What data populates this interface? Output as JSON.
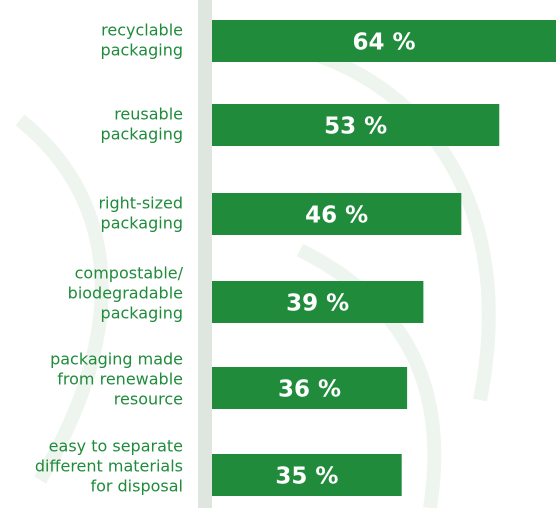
{
  "chart_data": {
    "type": "bar",
    "orientation": "horizontal",
    "categories": [
      [
        "recyclable",
        "packaging"
      ],
      [
        "reusable",
        "packaging"
      ],
      [
        "right-sized",
        "packaging"
      ],
      [
        "compostable/",
        "biodegradable",
        "packaging"
      ],
      [
        "packaging made",
        "from renewable",
        "resource"
      ],
      [
        "easy to separate",
        "different materials",
        "for disposal"
      ]
    ],
    "values": [
      64,
      53,
      46,
      39,
      36,
      35
    ],
    "value_labels": [
      "64 %",
      "53 %",
      "46 %",
      "39 %",
      "36 %",
      "35 %"
    ],
    "color": "#1f8b3b",
    "label_color": "#1f8b3b"
  }
}
